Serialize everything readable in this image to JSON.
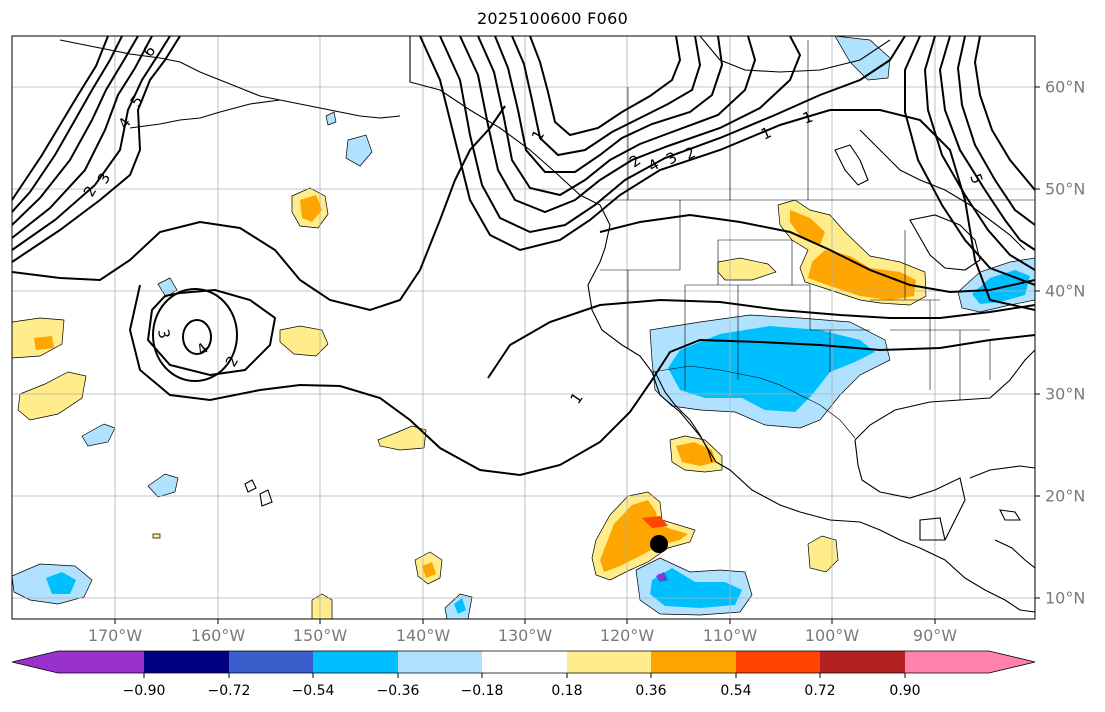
{
  "title": "2025100600 F060",
  "longitude_labels": [
    "170°W",
    "160°W",
    "150°W",
    "140°W",
    "130°W",
    "120°W",
    "110°W",
    "100°W",
    "90°W"
  ],
  "latitude_labels": [
    "60°N",
    "50°N",
    "40°N",
    "30°N",
    "20°N",
    "10°N"
  ],
  "contour_labels": [
    "2",
    "3",
    "4",
    "2",
    "1",
    "1",
    "1",
    "2",
    "3",
    "4",
    "5",
    "6",
    "1",
    "2",
    "3",
    "4",
    "5"
  ],
  "colorbar": {
    "tick_labels": [
      "−0.90",
      "−0.72",
      "−0.54",
      "−0.36",
      "−0.18",
      "0.18",
      "0.36",
      "0.54",
      "0.72",
      "0.90"
    ],
    "colors": [
      "#9932cc",
      "#000080",
      "#3a5fcd",
      "#00bfff",
      "#b0e2ff",
      "#ffffff",
      "#ffec8b",
      "#ffa500",
      "#ff4500",
      "#b22222",
      "#ff82ab"
    ]
  },
  "marker": "storm-center"
}
